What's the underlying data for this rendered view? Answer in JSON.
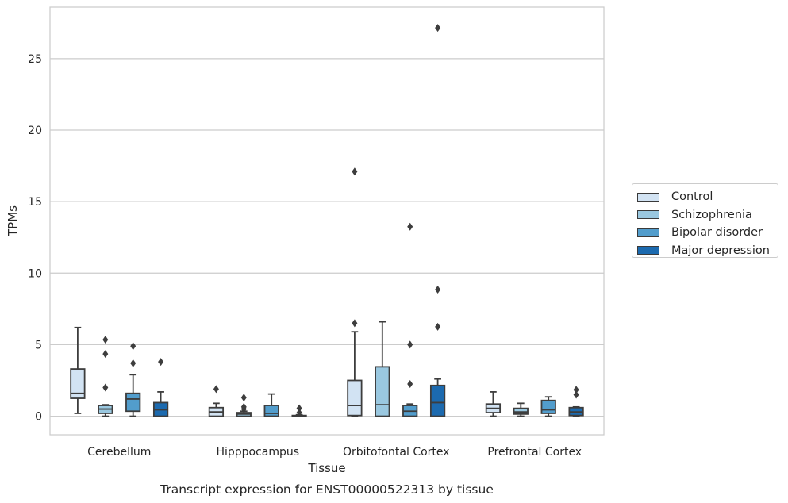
{
  "chart_data": {
    "type": "box",
    "title": "Transcript expression for ENST00000522313 by tissue",
    "xlabel": "Tissue",
    "ylabel": "TPMs",
    "categories": [
      "Cerebellum",
      "Hipppocampus",
      "Orbitofontal Cortex",
      "Prefrontal Cortex"
    ],
    "yticks": [
      0,
      5,
      10,
      15,
      20,
      25
    ],
    "ylim": [
      -1.3,
      28.6
    ],
    "grid": "horizontal",
    "legend_position": "right",
    "series": [
      {
        "name": "Control",
        "color": "#d2e3f3",
        "boxes": [
          {
            "whislo": 0.2,
            "q1": 1.25,
            "med": 1.6,
            "q3": 3.3,
            "whishi": 6.2,
            "fliers": []
          },
          {
            "whislo": 0.0,
            "q1": 0.0,
            "med": 0.3,
            "q3": 0.6,
            "whishi": 0.9,
            "fliers": [
              1.9
            ]
          },
          {
            "whislo": 0.0,
            "q1": 0.05,
            "med": 0.75,
            "q3": 2.5,
            "whishi": 5.9,
            "fliers": [
              6.5,
              17.1
            ]
          },
          {
            "whislo": 0.0,
            "q1": 0.25,
            "med": 0.55,
            "q3": 0.85,
            "whishi": 1.7,
            "fliers": []
          }
        ]
      },
      {
        "name": "Schizophrenia",
        "color": "#9ac8e0",
        "boxes": [
          {
            "whislo": 0.0,
            "q1": 0.2,
            "med": 0.5,
            "q3": 0.75,
            "whishi": 0.8,
            "fliers": [
              2.0,
              4.35,
              5.35
            ]
          },
          {
            "whislo": 0.0,
            "q1": 0.0,
            "med": 0.15,
            "q3": 0.25,
            "whishi": 0.35,
            "fliers": [
              0.5,
              0.65,
              1.3
            ]
          },
          {
            "whislo": 0.0,
            "q1": 0.0,
            "med": 0.8,
            "q3": 3.45,
            "whishi": 6.6,
            "fliers": []
          },
          {
            "whislo": 0.0,
            "q1": 0.15,
            "med": 0.3,
            "q3": 0.55,
            "whishi": 0.9,
            "fliers": []
          }
        ]
      },
      {
        "name": "Bipolar disorder",
        "color": "#529dcc",
        "boxes": [
          {
            "whislo": 0.0,
            "q1": 0.35,
            "med": 1.2,
            "q3": 1.6,
            "whishi": 2.9,
            "fliers": [
              3.7,
              4.9
            ]
          },
          {
            "whislo": 0.0,
            "q1": 0.0,
            "med": 0.2,
            "q3": 0.75,
            "whishi": 1.55,
            "fliers": []
          },
          {
            "whislo": 0.0,
            "q1": 0.0,
            "med": 0.35,
            "q3": 0.75,
            "whishi": 0.85,
            "fliers": [
              2.25,
              5.0,
              13.25
            ]
          },
          {
            "whislo": 0.0,
            "q1": 0.2,
            "med": 0.45,
            "q3": 1.1,
            "whishi": 1.35,
            "fliers": []
          }
        ]
      },
      {
        "name": "Major depression",
        "color": "#1c6aaf",
        "boxes": [
          {
            "whislo": 0.0,
            "q1": 0.0,
            "med": 0.45,
            "q3": 0.95,
            "whishi": 1.7,
            "fliers": [
              3.8
            ]
          },
          {
            "whislo": 0.0,
            "q1": 0.0,
            "med": 0.0,
            "q3": 0.05,
            "whishi": 0.1,
            "fliers": [
              0.25,
              0.55
            ]
          },
          {
            "whislo": 0.0,
            "q1": 0.0,
            "med": 0.95,
            "q3": 2.15,
            "whishi": 2.6,
            "fliers": [
              6.25,
              8.85,
              27.15
            ]
          },
          {
            "whislo": 0.0,
            "q1": 0.05,
            "med": 0.3,
            "q3": 0.6,
            "whishi": 0.65,
            "fliers": [
              1.5,
              1.85
            ]
          }
        ]
      }
    ]
  }
}
